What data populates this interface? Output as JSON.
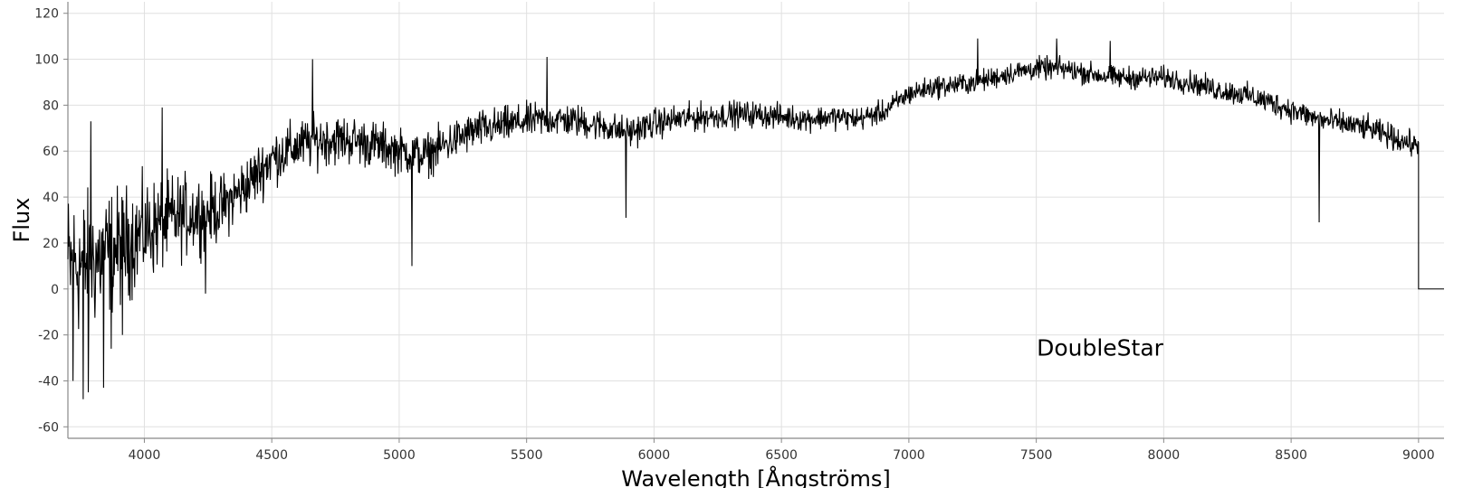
{
  "chart_data": {
    "type": "line",
    "title": "",
    "xlabel": "Wavelength [Ångströms]",
    "ylabel": "Flux",
    "xlim": [
      3700,
      9100
    ],
    "ylim": [
      -65,
      125
    ],
    "xticks": [
      4000,
      4500,
      5000,
      5500,
      6000,
      6500,
      7000,
      7500,
      8000,
      8500,
      9000
    ],
    "yticks": [
      -60,
      -40,
      -20,
      0,
      20,
      40,
      60,
      80,
      100,
      120
    ],
    "xtick_labels": [
      "4000",
      "4500",
      "5000",
      "5500",
      "6000",
      "6500",
      "7000",
      "7500",
      "8000",
      "8500",
      "9000"
    ],
    "ytick_labels": [
      "-60",
      "-40",
      "-20",
      "0",
      "20",
      "40",
      "60",
      "80",
      "100",
      "120"
    ],
    "grid": true,
    "legend": "none",
    "annotations": [
      {
        "text": "DoubleStar",
        "x": 7750,
        "y": -29
      }
    ],
    "series": [
      {
        "name": "DoubleStar",
        "color": "#000000",
        "continuum": {
          "x": [
            3700,
            3800,
            3900,
            4000,
            4100,
            4200,
            4300,
            4400,
            4500,
            4600,
            4700,
            4800,
            4900,
            5000,
            5100,
            5200,
            5300,
            5400,
            5500,
            5600,
            5700,
            5800,
            5900,
            6000,
            6100,
            6200,
            6300,
            6400,
            6500,
            6600,
            6700,
            6800,
            6900,
            7000,
            7100,
            7200,
            7300,
            7400,
            7500,
            7600,
            7700,
            7800,
            7900,
            8000,
            8100,
            8200,
            8300,
            8400,
            8500,
            8600,
            8700,
            8800,
            8900,
            9000
          ],
          "y": [
            10,
            12,
            18,
            25,
            30,
            33,
            35,
            45,
            57,
            62,
            65,
            65,
            63,
            60,
            58,
            64,
            69,
            71,
            73,
            74,
            73,
            71,
            68,
            72,
            74,
            75,
            76,
            76,
            75,
            74,
            75,
            74,
            77,
            85,
            88,
            89,
            91,
            94,
            96,
            96,
            94,
            92,
            92,
            92,
            90,
            87,
            85,
            82,
            78,
            74,
            72,
            70,
            66,
            62
          ]
        },
        "noise_amplitude": {
          "x": [
            3700,
            4000,
            4300,
            4500,
            5000,
            5500,
            6000,
            6500,
            7000,
            7500,
            8000,
            8500,
            9000
          ],
          "y": [
            30,
            20,
            13,
            11,
            9,
            7,
            6,
            5,
            4.5,
            4.5,
            4.5,
            5,
            5
          ]
        },
        "absorption_lines": [
          {
            "x": 5050,
            "y": 10
          },
          {
            "x": 5890,
            "y": 27
          },
          {
            "x": 8610,
            "y": 29
          }
        ],
        "spikes": [
          {
            "x": 3720,
            "y": -40
          },
          {
            "x": 3760,
            "y": -48
          },
          {
            "x": 3780,
            "y": -45
          },
          {
            "x": 3790,
            "y": 73
          },
          {
            "x": 3840,
            "y": -43
          },
          {
            "x": 3870,
            "y": -26
          },
          {
            "x": 3915,
            "y": -20
          },
          {
            "x": 4070,
            "y": 79
          },
          {
            "x": 4240,
            "y": -2
          },
          {
            "x": 4660,
            "y": 100
          },
          {
            "x": 5580,
            "y": 101
          },
          {
            "x": 5890,
            "y": 31
          },
          {
            "x": 7270,
            "y": 109
          },
          {
            "x": 7580,
            "y": 109
          },
          {
            "x": 7790,
            "y": 108
          }
        ],
        "cutoff": {
          "x": 9000,
          "to_value": 0,
          "end_x": 9100
        }
      }
    ]
  }
}
